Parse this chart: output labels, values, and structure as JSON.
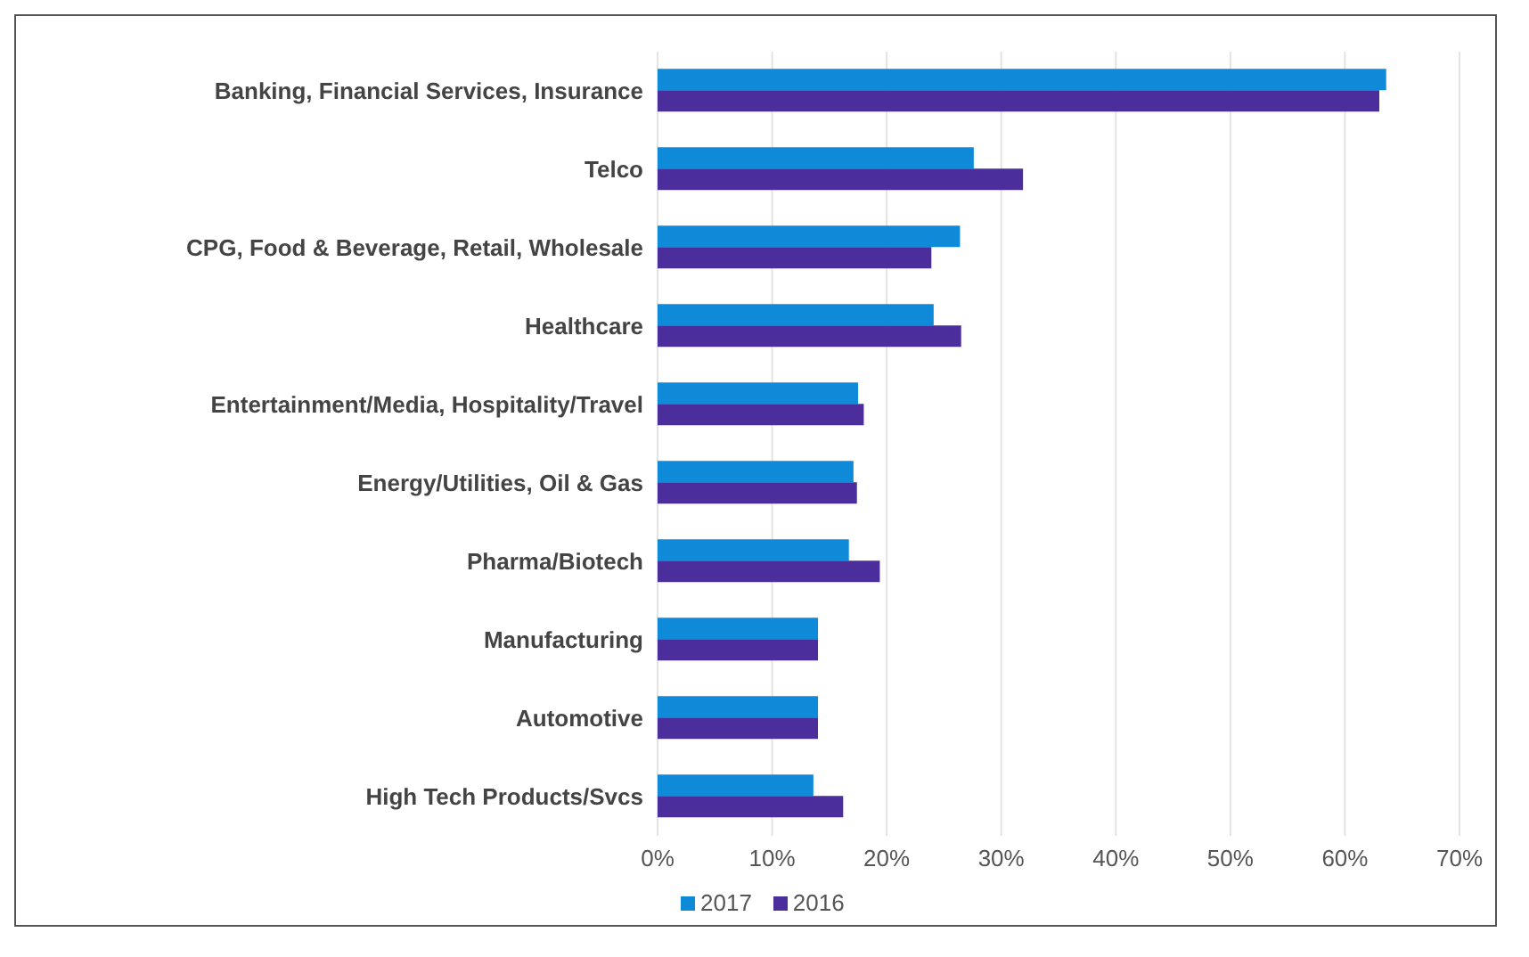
{
  "chart_data": {
    "type": "bar",
    "orientation": "horizontal",
    "categories": [
      "Banking, Financial Services, Insurance",
      "Telco",
      "CPG, Food & Beverage, Retail, Wholesale",
      "Healthcare",
      "Entertainment/Media, Hospitality/Travel",
      "Energy/Utilities, Oil & Gas",
      "Pharma/Biotech",
      "Manufacturing",
      "Automotive",
      "High Tech Products/Svcs"
    ],
    "series": [
      {
        "name": "2017",
        "color": "#0e8ad8",
        "values": [
          63.6,
          27.6,
          26.4,
          24.1,
          17.5,
          17.1,
          16.7,
          14.0,
          14.0,
          13.6
        ]
      },
      {
        "name": "2016",
        "color": "#4b2e9c",
        "values": [
          63.0,
          31.9,
          23.9,
          26.5,
          18.0,
          17.4,
          19.4,
          14.0,
          14.0,
          16.2
        ]
      }
    ],
    "xlim": [
      0,
      70
    ],
    "xticks": [
      {
        "value": 0,
        "label": "0%"
      },
      {
        "value": 10,
        "label": "10%"
      },
      {
        "value": 20,
        "label": "20%"
      },
      {
        "value": 30,
        "label": "30%"
      },
      {
        "value": 40,
        "label": "40%"
      },
      {
        "value": 50,
        "label": "50%"
      },
      {
        "value": 60,
        "label": "60%"
      },
      {
        "value": 70,
        "label": "70%"
      }
    ],
    "grid": "x",
    "legend": "bottom"
  }
}
